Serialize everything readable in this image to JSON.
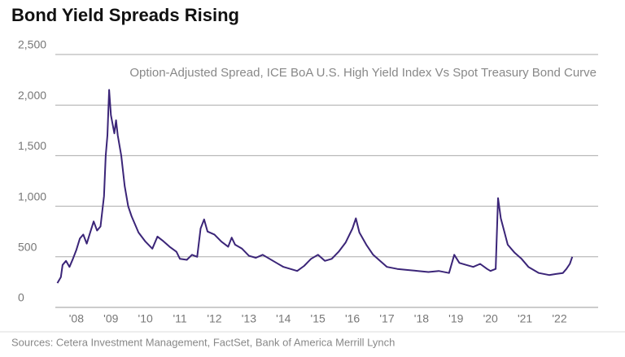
{
  "chart_data": {
    "type": "line",
    "title": "Bond Yield Spreads Rising",
    "subtitle": "Option-Adjusted Spread, ICE BoA U.S. High Yield Index Vs Spot Treasury Bond Curve",
    "source": "Sources: Cetera Investment Management, FactSet, Bank of America Merrill Lynch",
    "xlim": [
      2007.39,
      2023.12
    ],
    "xticks": [
      {
        "value": 2008,
        "label": "'08"
      },
      {
        "value": 2009,
        "label": "'09"
      },
      {
        "value": 2010,
        "label": "'10"
      },
      {
        "value": 2011,
        "label": "'11"
      },
      {
        "value": 2012,
        "label": "'12"
      },
      {
        "value": 2013,
        "label": "'13"
      },
      {
        "value": 2014,
        "label": "'14"
      },
      {
        "value": 2015,
        "label": "'15"
      },
      {
        "value": 2016,
        "label": "'16"
      },
      {
        "value": 2017,
        "label": "'17"
      },
      {
        "value": 2018,
        "label": "'18"
      },
      {
        "value": 2019,
        "label": "'19"
      },
      {
        "value": 2020,
        "label": "'20"
      },
      {
        "value": 2021,
        "label": "'21"
      },
      {
        "value": 2022,
        "label": "'22"
      }
    ],
    "ylim": [
      0,
      2500
    ],
    "yticks": [
      0,
      500,
      {
        "value": 1000,
        "label": "1,000"
      },
      {
        "value": 1500,
        "label": "1,500"
      },
      {
        "value": 2000,
        "label": "2,000"
      },
      {
        "value": 2500,
        "label": "2,500"
      }
    ],
    "grid": true,
    "series": [
      {
        "color": "#3b2578",
        "x": [
          2007.45,
          2007.55,
          2007.6,
          2007.7,
          2007.8,
          2007.9,
          2008.0,
          2008.1,
          2008.2,
          2008.3,
          2008.4,
          2008.5,
          2008.6,
          2008.7,
          2008.8,
          2008.85,
          2008.9,
          2008.95,
          2009.0,
          2009.1,
          2009.15,
          2009.2,
          2009.3,
          2009.4,
          2009.5,
          2009.6,
          2009.8,
          2010.0,
          2010.2,
          2010.35,
          2010.5,
          2010.7,
          2010.9,
          2011.0,
          2011.2,
          2011.35,
          2011.5,
          2011.6,
          2011.7,
          2011.8,
          2012.0,
          2012.2,
          2012.4,
          2012.5,
          2012.6,
          2012.8,
          2013.0,
          2013.2,
          2013.4,
          2013.6,
          2013.8,
          2014.0,
          2014.2,
          2014.4,
          2014.6,
          2014.8,
          2015.0,
          2015.2,
          2015.4,
          2015.6,
          2015.8,
          2016.0,
          2016.1,
          2016.2,
          2016.4,
          2016.6,
          2016.8,
          2017.0,
          2017.3,
          2017.6,
          2017.9,
          2018.2,
          2018.5,
          2018.8,
          2018.95,
          2019.1,
          2019.3,
          2019.5,
          2019.7,
          2019.9,
          2020.0,
          2020.15,
          2020.22,
          2020.3,
          2020.4,
          2020.5,
          2020.7,
          2020.9,
          2021.1,
          2021.4,
          2021.7,
          2021.9,
          2022.1,
          2022.2,
          2022.3,
          2022.37
        ],
        "values": [
          240,
          300,
          420,
          460,
          400,
          480,
          570,
          680,
          720,
          630,
          740,
          850,
          760,
          800,
          1100,
          1500,
          1700,
          2150,
          1900,
          1720,
          1850,
          1700,
          1500,
          1200,
          1000,
          900,
          740,
          650,
          580,
          700,
          660,
          600,
          550,
          480,
          470,
          520,
          500,
          780,
          870,
          750,
          720,
          650,
          600,
          690,
          620,
          580,
          510,
          490,
          520,
          480,
          440,
          400,
          380,
          360,
          410,
          480,
          520,
          460,
          480,
          550,
          640,
          780,
          880,
          740,
          620,
          520,
          460,
          400,
          380,
          370,
          360,
          350,
          360,
          340,
          520,
          440,
          420,
          400,
          430,
          380,
          360,
          380,
          1080,
          880,
          750,
          620,
          540,
          480,
          400,
          340,
          320,
          330,
          340,
          380,
          430,
          500
        ]
      }
    ]
  }
}
